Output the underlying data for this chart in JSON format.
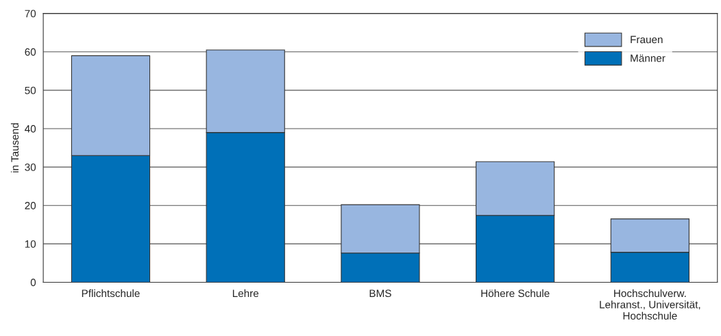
{
  "chart_data": {
    "type": "bar",
    "ylabel": "in Tausend",
    "stacked": true,
    "categories": [
      "Pflichtschule",
      "Lehre",
      "BMS",
      "Höhere Schule",
      "Hochschulverw.\nLehranst., Universität,\nHochschule"
    ],
    "series": [
      {
        "name": "Männer",
        "color": "#0070b8",
        "values": [
          33,
          39,
          7.6,
          17.4,
          7.8
        ]
      },
      {
        "name": "Frauen",
        "color": "#98b6e0",
        "values": [
          26,
          21.5,
          12.6,
          14,
          8.7
        ]
      }
    ],
    "ylim": [
      0,
      70
    ],
    "yticks": [
      0,
      10,
      20,
      30,
      40,
      50,
      60,
      70
    ],
    "grid": "y",
    "legend": "top right"
  }
}
